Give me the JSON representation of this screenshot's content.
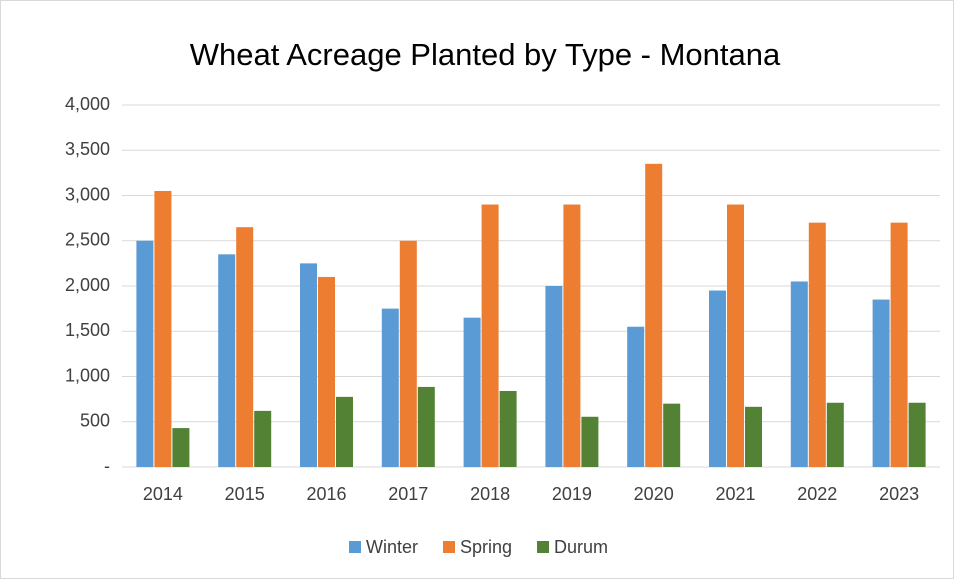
{
  "chart_data": {
    "type": "bar",
    "title": "Wheat Acreage Planted by Type - Montana",
    "categories": [
      "2014",
      "2015",
      "2016",
      "2017",
      "2018",
      "2019",
      "2020",
      "2021",
      "2022",
      "2023"
    ],
    "series": [
      {
        "name": "Winter",
        "color": "#5b9bd5",
        "values": [
          2500,
          2350,
          2250,
          1750,
          1650,
          2000,
          1550,
          1950,
          2050,
          1850
        ]
      },
      {
        "name": "Spring",
        "color": "#ed7d31",
        "values": [
          3050,
          2650,
          2100,
          2500,
          2900,
          2900,
          3350,
          2900,
          2700,
          2700
        ]
      },
      {
        "name": "Durum",
        "color": "#548235",
        "values": [
          430,
          620,
          775,
          885,
          840,
          555,
          700,
          665,
          710,
          710
        ]
      }
    ],
    "ylim": [
      0,
      4000
    ],
    "yticks": [
      {
        "value": 0,
        "label": "-"
      },
      500,
      {
        "value": 1000,
        "label": "1,000"
      },
      {
        "value": 1500,
        "label": "1,500"
      },
      {
        "value": 2000,
        "label": "2,000"
      },
      {
        "value": 2500,
        "label": "2,500"
      },
      {
        "value": 3000,
        "label": "3,000"
      },
      {
        "value": 3500,
        "label": "3,500"
      },
      {
        "value": 4000,
        "label": "4,000"
      }
    ],
    "grid": true,
    "legend": "bottom"
  }
}
